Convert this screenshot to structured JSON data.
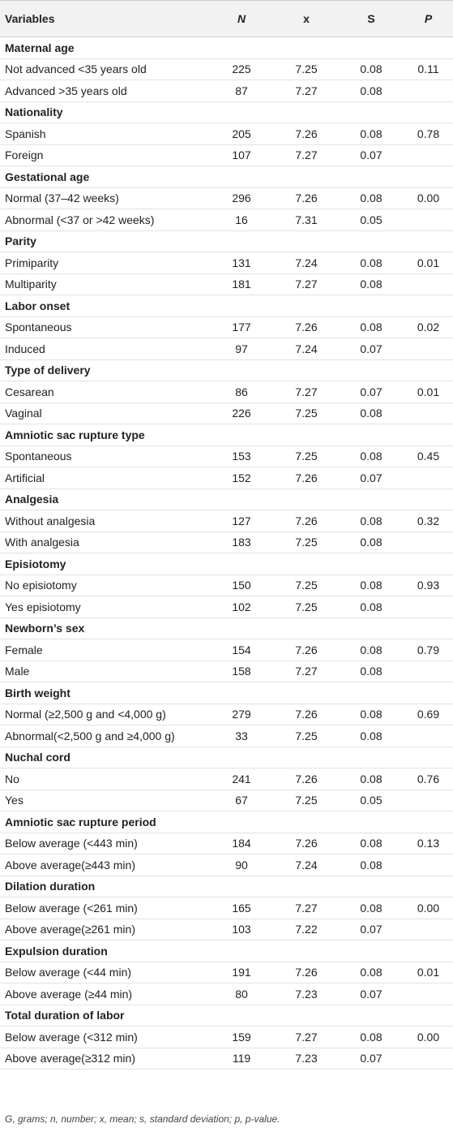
{
  "table": {
    "columns": [
      "Variables",
      "N",
      "x",
      "S",
      "P"
    ],
    "groups": [
      {
        "label": "Maternal age",
        "rows": [
          [
            "Not advanced <35 years old",
            "225",
            "7.25",
            "0.08",
            "0.11"
          ],
          [
            "Advanced >35 years old",
            "87",
            "7.27",
            "0.08"
          ]
        ]
      },
      {
        "label": "Nationality",
        "rows": [
          [
            "Spanish",
            "205",
            "7.26",
            "0.08",
            "0.78"
          ],
          [
            "Foreign",
            "107",
            "7.27",
            "0.07"
          ]
        ]
      },
      {
        "label": "Gestational age",
        "rows": [
          [
            "Normal (37–42 weeks)",
            "296",
            "7.26",
            "0.08",
            "0.00"
          ],
          [
            "Abnormal (<37 or >42 weeks)",
            "16",
            "7.31",
            "0.05"
          ]
        ]
      },
      {
        "label": "Parity",
        "rows": [
          [
            "Primiparity",
            "131",
            "7.24",
            "0.08",
            "0.01"
          ],
          [
            "Multiparity",
            "181",
            "7.27",
            "0.08"
          ]
        ]
      },
      {
        "label": "Labor onset",
        "rows": [
          [
            "Spontaneous",
            "177",
            "7.26",
            "0.08",
            "0.02"
          ],
          [
            "Induced",
            "97",
            "7.24",
            "0.07"
          ]
        ]
      },
      {
        "label": "Type of delivery",
        "rows": [
          [
            "Cesarean",
            "86",
            "7.27",
            "0.07",
            "0.01"
          ],
          [
            "Vaginal",
            "226",
            "7.25",
            "0.08"
          ]
        ]
      },
      {
        "label": "Amniotic sac rupture type",
        "rows": [
          [
            "Spontaneous",
            "153",
            "7.25",
            "0.08",
            "0.45"
          ],
          [
            "Artificial",
            "152",
            "7.26",
            "0.07"
          ]
        ]
      },
      {
        "label": "Analgesia",
        "rows": [
          [
            "Without analgesia",
            "127",
            "7.26",
            "0.08",
            "0.32"
          ],
          [
            "With analgesia",
            "183",
            "7.25",
            "0.08"
          ]
        ]
      },
      {
        "label": "Episiotomy",
        "rows": [
          [
            "No episiotomy",
            "150",
            "7.25",
            "0.08",
            "0.93"
          ],
          [
            "Yes episiotomy",
            "102",
            "7.25",
            "0.08"
          ]
        ]
      },
      {
        "label": "Newborn’s sex",
        "rows": [
          [
            "Female",
            "154",
            "7.26",
            "0.08",
            "0.79"
          ],
          [
            "Male",
            "158",
            "7.27",
            "0.08"
          ]
        ]
      },
      {
        "label": "Birth weight",
        "rows": [
          [
            "Normal (≥2,500 g and <4,000 g)",
            "279",
            "7.26",
            "0.08",
            "0.69"
          ],
          [
            "Abnormal(<2,500 g and ≥4,000 g)",
            "33",
            "7.25",
            "0.08"
          ]
        ]
      },
      {
        "label": "Nuchal cord",
        "rows": [
          [
            "No",
            "241",
            "7.26",
            "0.08",
            "0.76"
          ],
          [
            "Yes",
            "67",
            "7.25",
            "0.05"
          ]
        ]
      },
      {
        "label": "Amniotic sac rupture period",
        "rows": [
          [
            "Below average (<443 min)",
            "184",
            "7.26",
            "0.08",
            "0.13"
          ],
          [
            "Above average(≥443 min)",
            "90",
            "7.24",
            "0.08"
          ]
        ]
      },
      {
        "label": "Dilation duration",
        "rows": [
          [
            "Below average (<261 min)",
            "165",
            "7.27",
            "0.08",
            "0.00"
          ],
          [
            "Above average(≥261 min)",
            "103",
            "7.22",
            "0.07"
          ]
        ]
      },
      {
        "label": "Expulsion duration",
        "rows": [
          [
            "Below average (<44 min)",
            "191",
            "7.26",
            "0.08",
            "0.01"
          ],
          [
            "Above average (≥44 min)",
            "80",
            "7.23",
            "0.07"
          ]
        ]
      },
      {
        "label": "Total duration of labor",
        "rows": [
          [
            "Below average (<312 min)",
            "159",
            "7.27",
            "0.08",
            "0.00"
          ],
          [
            "Above average(≥312 min)",
            "119",
            "7.23",
            "0.07"
          ]
        ]
      }
    ]
  },
  "footnote": "G, grams; n, number; x, mean; s, standard deviation; p, p-value."
}
